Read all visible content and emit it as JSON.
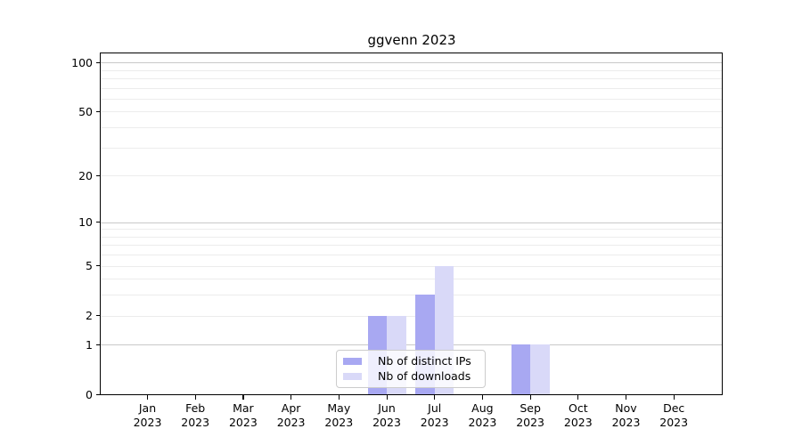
{
  "chart_data": {
    "type": "bar",
    "title": "ggvenn 2023",
    "x_year": "2023",
    "months": [
      "Jan",
      "Feb",
      "Mar",
      "Apr",
      "May",
      "Jun",
      "Jul",
      "Aug",
      "Sep",
      "Oct",
      "Nov",
      "Dec"
    ],
    "categories": [
      "Jan 2023",
      "Feb 2023",
      "Mar 2023",
      "Apr 2023",
      "May 2023",
      "Jun 2023",
      "Jul 2023",
      "Aug 2023",
      "Sep 2023",
      "Oct 2023",
      "Nov 2023",
      "Dec 2023"
    ],
    "series": [
      {
        "name": "Nb of distinct IPs",
        "color": "#a8a8f2",
        "values": [
          0,
          0,
          0,
          0,
          0,
          2,
          3,
          0,
          1,
          0,
          0,
          0
        ]
      },
      {
        "name": "Nb of downloads",
        "color": "#d9d9f8",
        "values": [
          0,
          0,
          0,
          0,
          0,
          2,
          5,
          0,
          1,
          0,
          0,
          0
        ]
      }
    ],
    "y_axis": {
      "scale": "log1p",
      "tick_values": [
        0,
        1,
        2,
        5,
        10,
        20,
        50,
        100
      ],
      "tick_labels": [
        "0",
        "1",
        "2",
        "5",
        "10",
        "20",
        "50",
        "100"
      ],
      "major_gridlines": [
        1,
        10,
        100
      ],
      "minor_gridlines": [
        2,
        3,
        4,
        5,
        6,
        7,
        8,
        9,
        20,
        30,
        40,
        50,
        60,
        70,
        80,
        90
      ],
      "range": [
        0,
        113
      ]
    },
    "legend": {
      "position": "lower center",
      "entries": [
        "Nb of distinct IPs",
        "Nb of downloads"
      ]
    },
    "grid": true,
    "colors": {
      "major_gridline": "#c9c9c9",
      "minor_gridline": "#ececec",
      "spine": "#000000",
      "background": "#ffffff",
      "text": "#000000"
    }
  }
}
